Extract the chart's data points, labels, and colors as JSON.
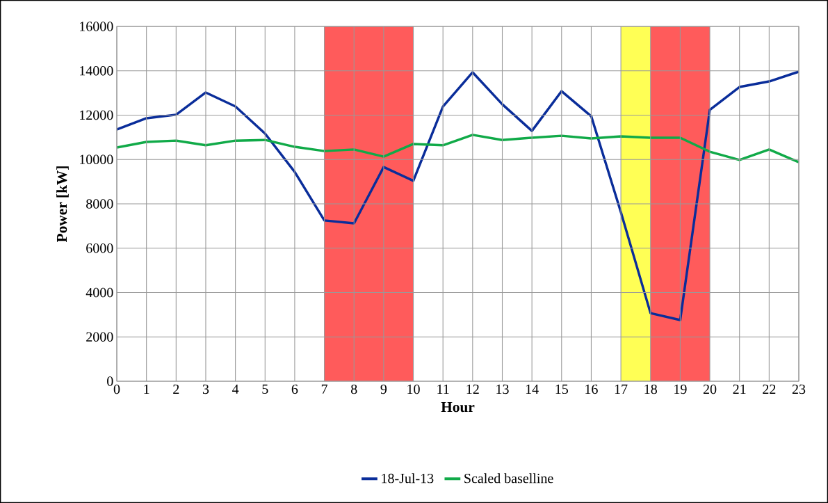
{
  "chart_data": {
    "type": "line",
    "xlabel": "Hour",
    "ylabel": "Power   [kW]",
    "x": [
      0,
      1,
      2,
      3,
      4,
      5,
      6,
      7,
      8,
      9,
      10,
      11,
      12,
      13,
      14,
      15,
      16,
      17,
      18,
      19,
      20,
      21,
      22,
      23
    ],
    "series": [
      {
        "name": "18-Jul-13",
        "color": "#0a2d9a",
        "values": [
          11350,
          11860,
          12020,
          13020,
          12390,
          11170,
          9440,
          7250,
          7120,
          9660,
          9040,
          12390,
          13930,
          12490,
          11290,
          13080,
          11950,
          7620,
          3070,
          2760,
          12240,
          13270,
          13520,
          13960
        ]
      },
      {
        "name": "Scaled baselline",
        "color": "#10aa48",
        "values": [
          10540,
          10790,
          10850,
          10640,
          10850,
          10880,
          10570,
          10380,
          10450,
          10130,
          10700,
          10640,
          11110,
          10880,
          10980,
          11070,
          10950,
          11040,
          10980,
          10980,
          10350,
          9980,
          10450,
          9880
        ]
      }
    ],
    "bands": [
      {
        "axis": "x",
        "from": 7,
        "to": 10,
        "color": "#ff5b5b"
      },
      {
        "axis": "x",
        "from": 17,
        "to": 18,
        "color": "#ffff55"
      },
      {
        "axis": "x",
        "from": 18,
        "to": 20,
        "color": "#ff5b5b"
      }
    ],
    "xlim": [
      0,
      23
    ],
    "ylim": [
      0,
      16000
    ],
    "xticks": [
      0,
      1,
      2,
      3,
      4,
      5,
      6,
      7,
      8,
      9,
      10,
      11,
      12,
      13,
      14,
      15,
      16,
      17,
      18,
      19,
      20,
      21,
      22,
      23
    ],
    "yticks": [
      0,
      2000,
      4000,
      6000,
      8000,
      10000,
      12000,
      14000,
      16000
    ],
    "grid": true,
    "legend": "bottom",
    "marker": "none",
    "line_style": "solid"
  }
}
